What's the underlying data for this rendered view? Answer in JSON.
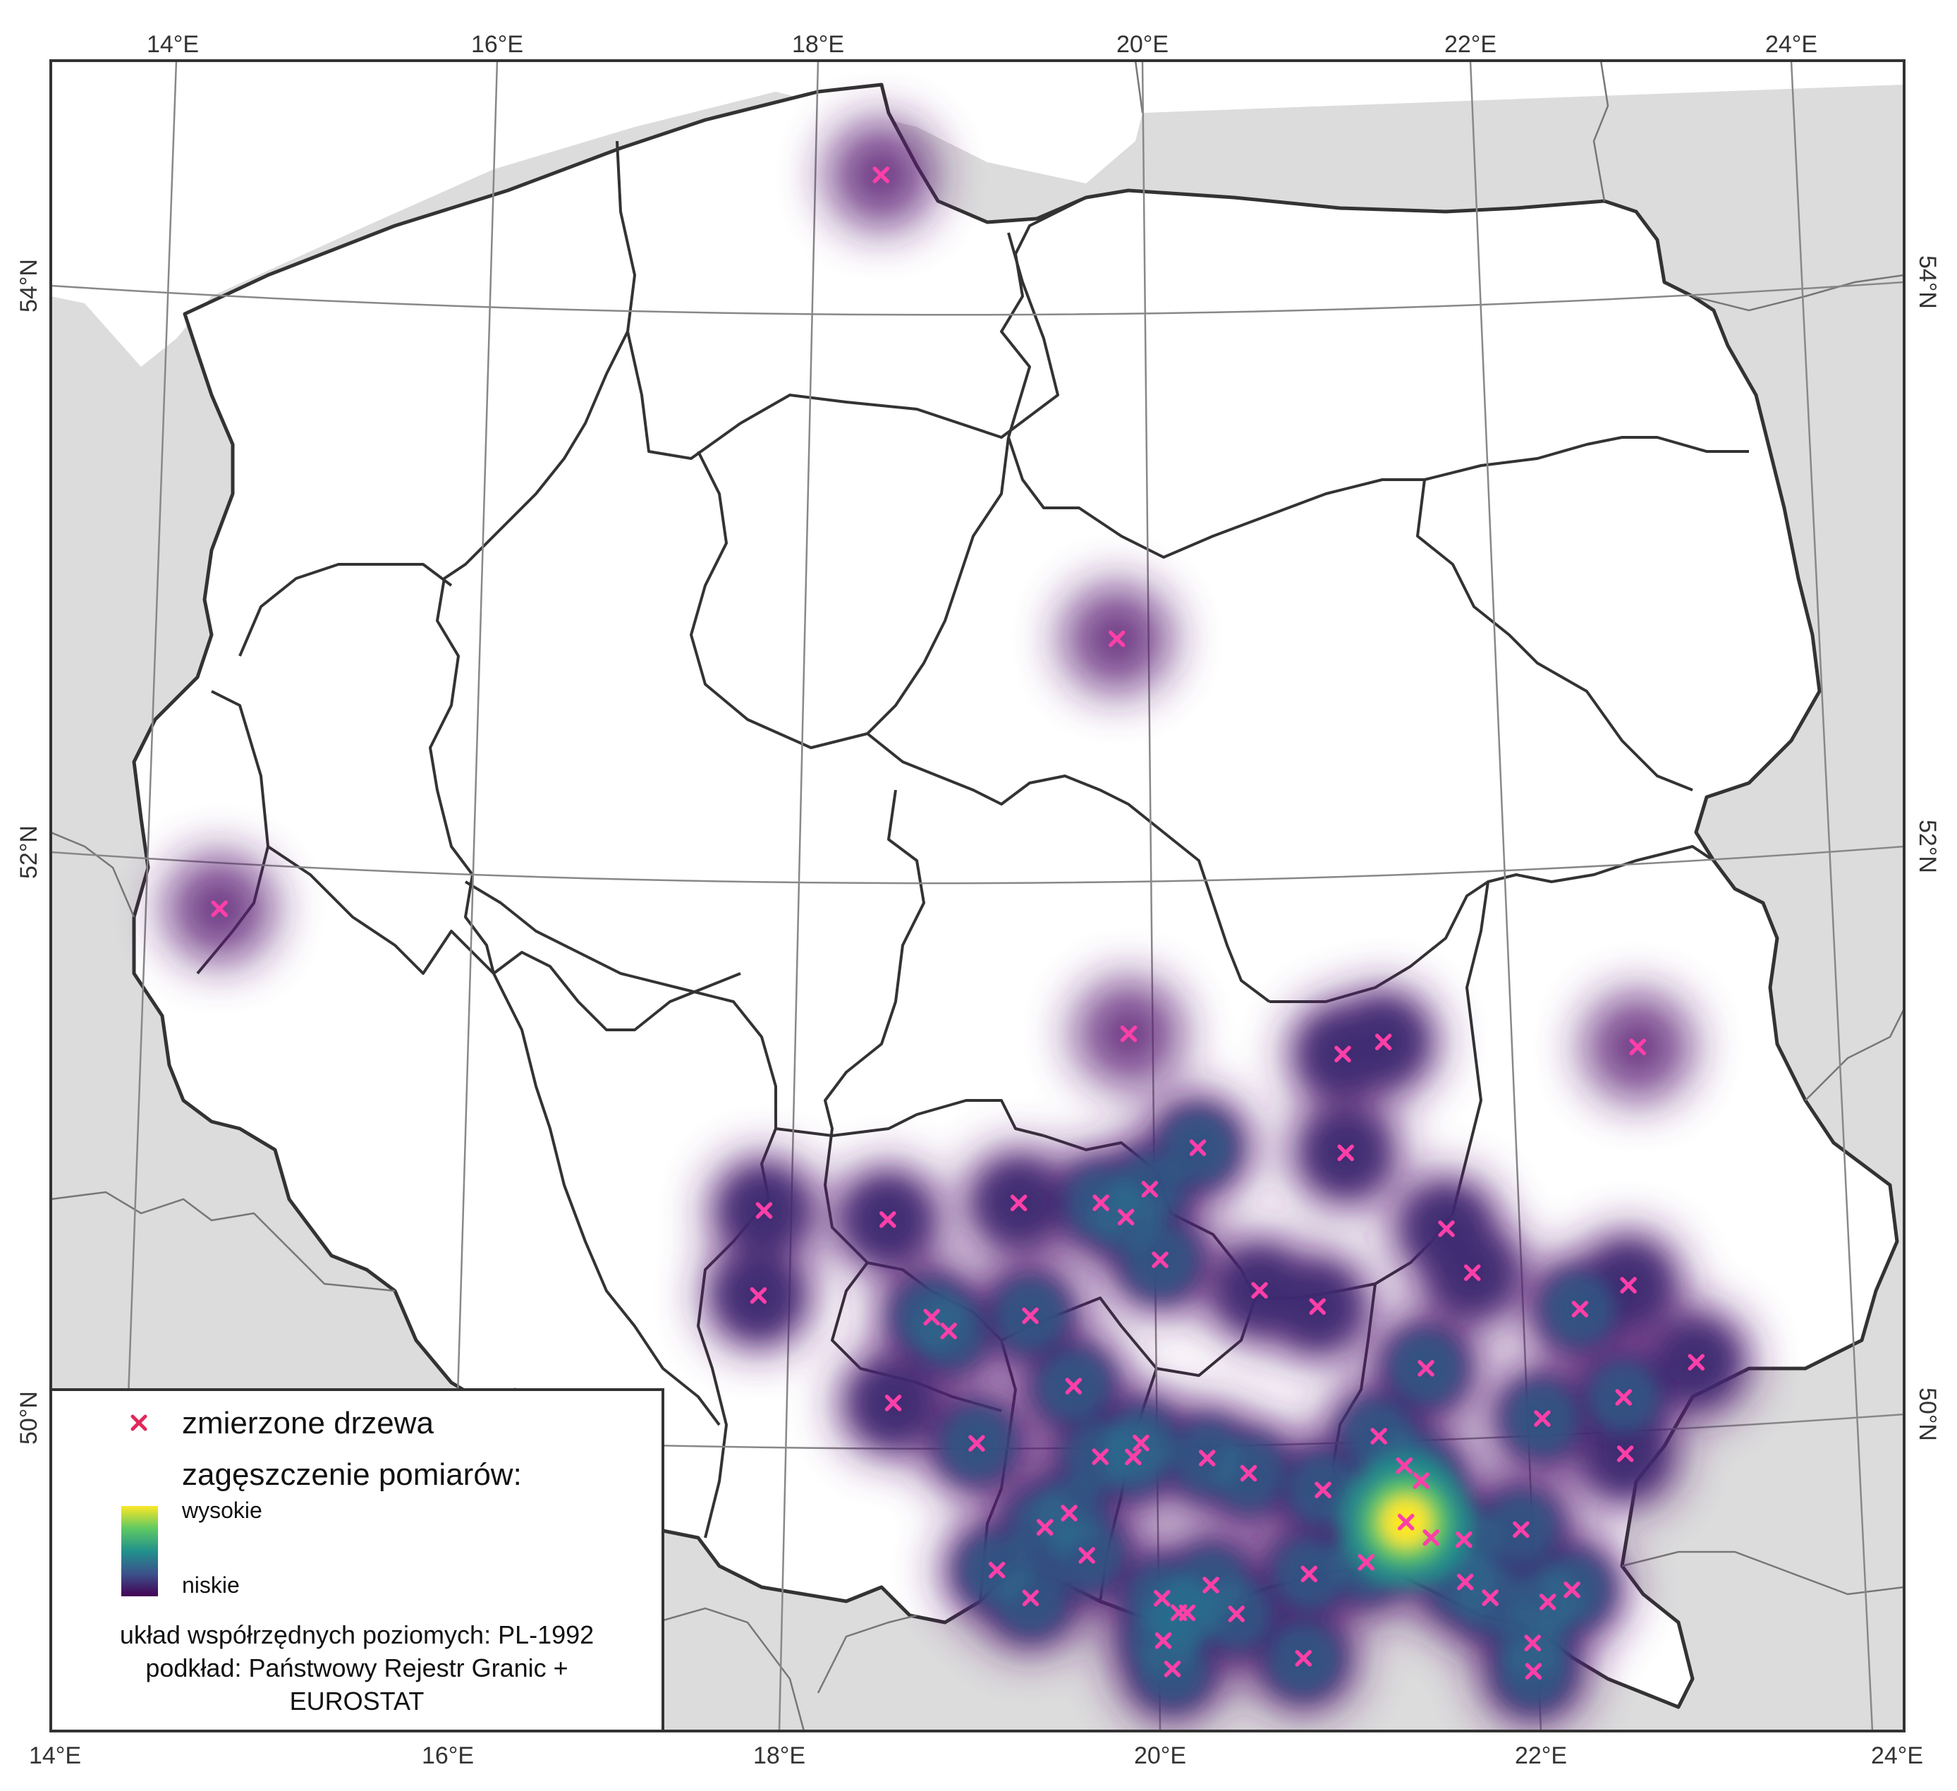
{
  "axes": {
    "top_lon_labels": [
      "14°E",
      "16°E",
      "18°E",
      "20°E",
      "22°E",
      "24°E"
    ],
    "bottom_lon_labels": [
      "14°E",
      "16°E",
      "18°E",
      "20°E",
      "22°E",
      "24°E"
    ],
    "left_lat_labels": [
      "54°N",
      "52°N",
      "50°N"
    ],
    "right_lat_labels": [
      "54°N",
      "52°N",
      "50°N"
    ]
  },
  "legend": {
    "points_label": "zmierzone drzewa",
    "density_label": "zagęszczenie pomiarów:",
    "high_label": "wysokie",
    "low_label": "niskie",
    "crs_note": "układ współrzędnych poziomych: PL-1992",
    "basemap_note": "podkład: Państwowy Rejestr Granic +",
    "basemap_note2": "EUROSTAT"
  },
  "colors": {
    "neighbour_fill": "#dcdcdc",
    "country_fill": "#ffffff",
    "border": "#333333",
    "graticule": "#888888",
    "points": "#ff3fa8",
    "density_low": "#440154",
    "density_mid": "#21918c",
    "density_high": "#fde725"
  },
  "map_data": {
    "measured_trees_lonlat": [
      [
        18.55,
        54.4
      ],
      [
        19.9,
        52.75
      ],
      [
        14.4,
        52.0
      ],
      [
        19.9,
        51.35
      ],
      [
        21.45,
        51.35
      ],
      [
        21.2,
        51.3
      ],
      [
        23.0,
        51.4
      ],
      [
        17.65,
        50.75
      ],
      [
        18.4,
        50.7
      ],
      [
        19.2,
        50.75
      ],
      [
        19.7,
        50.75
      ],
      [
        19.85,
        50.7
      ],
      [
        20.0,
        50.8
      ],
      [
        20.3,
        50.95
      ],
      [
        20.05,
        50.55
      ],
      [
        21.2,
        50.95
      ],
      [
        17.6,
        50.45
      ],
      [
        19.25,
        50.35
      ],
      [
        18.65,
        50.35
      ],
      [
        18.75,
        50.3
      ],
      [
        20.65,
        50.45
      ],
      [
        21.0,
        50.4
      ],
      [
        21.8,
        50.7
      ],
      [
        21.95,
        50.55
      ],
      [
        22.6,
        50.45
      ],
      [
        22.9,
        50.55
      ],
      [
        23.3,
        50.3
      ],
      [
        22.85,
        50.15
      ],
      [
        22.85,
        49.95
      ],
      [
        21.65,
        50.2
      ],
      [
        22.35,
        50.05
      ],
      [
        19.5,
        50.1
      ],
      [
        18.4,
        50.05
      ],
      [
        18.9,
        49.9
      ],
      [
        19.65,
        49.85
      ],
      [
        19.85,
        49.85
      ],
      [
        19.9,
        49.9
      ],
      [
        20.3,
        49.85
      ],
      [
        20.55,
        49.8
      ],
      [
        21.35,
        49.95
      ],
      [
        21.5,
        49.85
      ],
      [
        21.6,
        49.8
      ],
      [
        21.0,
        49.75
      ],
      [
        21.5,
        49.65
      ],
      [
        21.65,
        49.6
      ],
      [
        21.85,
        49.6
      ],
      [
        22.2,
        49.65
      ],
      [
        21.85,
        49.45
      ],
      [
        21.25,
        49.5
      ],
      [
        22.0,
        49.4
      ],
      [
        20.9,
        49.45
      ],
      [
        19.3,
        49.6
      ],
      [
        19.45,
        49.65
      ],
      [
        19.55,
        49.5
      ],
      [
        19.0,
        49.45
      ],
      [
        19.2,
        49.35
      ],
      [
        20.0,
        49.35
      ],
      [
        20.1,
        49.3
      ],
      [
        20.15,
        49.3
      ],
      [
        20.3,
        49.4
      ],
      [
        20.45,
        49.3
      ],
      [
        20.0,
        49.2
      ],
      [
        20.05,
        49.1
      ],
      [
        20.85,
        49.15
      ],
      [
        22.35,
        49.4
      ],
      [
        22.5,
        49.45
      ],
      [
        22.25,
        49.25
      ],
      [
        22.25,
        49.15
      ]
    ]
  }
}
